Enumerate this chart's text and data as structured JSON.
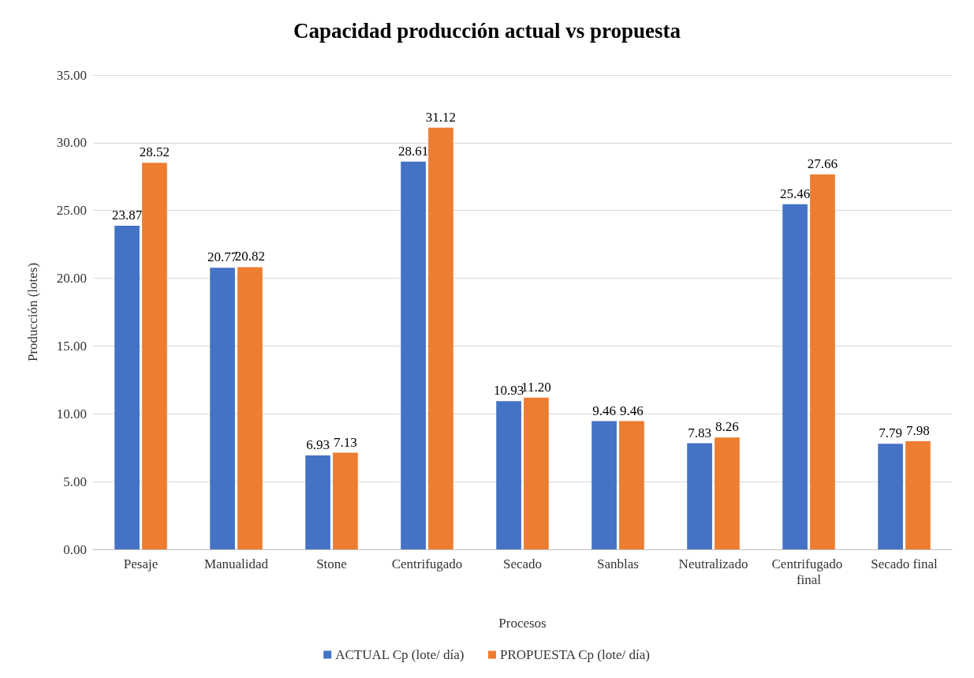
{
  "chart_data": {
    "type": "bar",
    "title": "Capacidad producción actual vs propuesta",
    "xlabel": "Procesos",
    "ylabel": "Producción (lotes)",
    "categories": [
      "Pesaje",
      "Manualidad",
      "Stone",
      "Centrifugado",
      "Secado",
      "Sanblas",
      "Neutralizado",
      "Centrifugado final",
      "Secado final"
    ],
    "series": [
      {
        "name": "ACTUAL Cp (lote/ día)",
        "color": "#4472c4",
        "values": [
          23.87,
          20.77,
          6.93,
          28.61,
          10.93,
          9.46,
          7.83,
          25.46,
          7.79
        ],
        "value_labels": [
          "23.87",
          "20.77",
          "6.93",
          "28.61",
          "10.93",
          "9.46",
          "7.83",
          "25.46",
          "7.79"
        ]
      },
      {
        "name": "PROPUESTA Cp (lote/ día)",
        "color": "#ed7d31",
        "values": [
          28.52,
          20.82,
          7.13,
          31.12,
          11.2,
          9.46,
          8.26,
          27.66,
          7.98
        ],
        "value_labels": [
          "28.52",
          "20.82",
          "7.13",
          "31.12",
          "11.20",
          "9.46",
          "8.26",
          "27.66",
          "7.98"
        ]
      }
    ],
    "ylim": [
      0,
      35
    ],
    "yticks": [
      {
        "value": 0,
        "label": "0.00"
      },
      {
        "value": 5,
        "label": "5.00"
      },
      {
        "value": 10,
        "label": "10.00"
      },
      {
        "value": 15,
        "label": "15.00"
      },
      {
        "value": 20,
        "label": "20.00"
      },
      {
        "value": 25,
        "label": "25.00"
      },
      {
        "value": 30,
        "label": "30.00"
      },
      {
        "value": 35,
        "label": "35.00"
      }
    ],
    "grid": "y",
    "legend": "bottom"
  }
}
